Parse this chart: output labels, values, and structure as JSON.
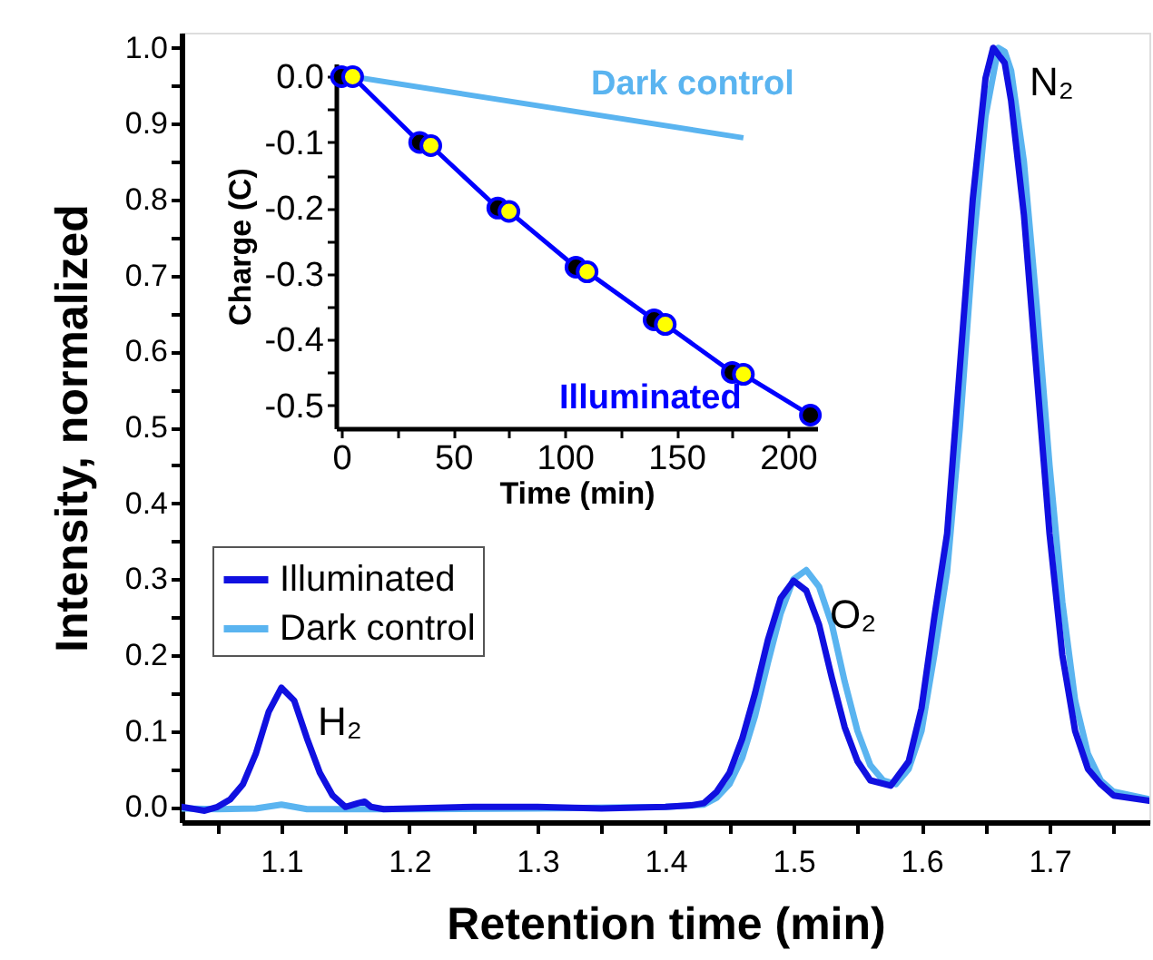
{
  "chart_data": [
    {
      "type": "line",
      "xlabel": "Retention time (min)",
      "ylabel": "Intensity, normalized",
      "xlim": [
        1.022,
        1.778
      ],
      "ylim": [
        -0.02,
        1.02
      ],
      "xticks": [
        {
          "value": 1.05,
          "label": null
        },
        1.1,
        {
          "value": 1.15,
          "label": null
        },
        1.2,
        {
          "value": 1.25,
          "label": null
        },
        1.3,
        {
          "value": 1.35,
          "label": null
        },
        1.4,
        {
          "value": 1.45,
          "label": null
        },
        1.5,
        {
          "value": 1.55,
          "label": null
        },
        1.6,
        {
          "value": 1.65,
          "label": null
        },
        1.7,
        {
          "value": 1.75,
          "label": null
        }
      ],
      "yticks": [
        {
          "value": 0,
          "label": "0.0"
        },
        {
          "value": 0.05,
          "label": null
        },
        0.1,
        {
          "value": 0.15,
          "label": null
        },
        0.2,
        {
          "value": 0.25,
          "label": null
        },
        0.3,
        {
          "value": 0.35,
          "label": null
        },
        0.4,
        {
          "value": 0.45,
          "label": null
        },
        0.5,
        {
          "value": 0.55,
          "label": null
        },
        0.6,
        {
          "value": 0.65,
          "label": null
        },
        0.7,
        {
          "value": 0.75,
          "label": null
        },
        0.8,
        {
          "value": 0.85,
          "label": null
        },
        0.9,
        {
          "value": 0.95,
          "label": null
        },
        {
          "value": 1,
          "label": "1.0"
        }
      ],
      "grid": false,
      "legend": "left",
      "line_style": "solid",
      "marker": "none",
      "annotations": [
        {
          "text": "H₂",
          "x": 1.1,
          "y": 0.157
        },
        {
          "text": "O₂",
          "x": 1.5,
          "y": 0.298
        },
        {
          "text": "N₂",
          "x": 1.656,
          "y": 1.0
        }
      ],
      "series": [
        {
          "name": "Illuminated",
          "color": "#1010e0",
          "x": [
            1.022,
            1.04,
            1.05,
            1.06,
            1.07,
            1.08,
            1.09,
            1.1,
            1.11,
            1.12,
            1.13,
            1.14,
            1.15,
            1.16,
            1.165,
            1.17,
            1.18,
            1.25,
            1.3,
            1.35,
            1.4,
            1.42,
            1.43,
            1.44,
            1.45,
            1.46,
            1.47,
            1.48,
            1.49,
            1.5,
            1.51,
            1.52,
            1.53,
            1.54,
            1.55,
            1.56,
            1.576,
            1.59,
            1.6,
            1.61,
            1.62,
            1.63,
            1.64,
            1.65,
            1.656,
            1.665,
            1.67,
            1.68,
            1.69,
            1.7,
            1.71,
            1.72,
            1.73,
            1.74,
            1.75,
            1.778
          ],
          "values": [
            0.0,
            -0.005,
            0.0,
            0.01,
            0.03,
            0.07,
            0.125,
            0.157,
            0.14,
            0.09,
            0.045,
            0.015,
            0.0,
            0.005,
            0.007,
            0.0,
            -0.003,
            0.0,
            0.0,
            -0.002,
            0.0,
            0.002,
            0.005,
            0.02,
            0.045,
            0.09,
            0.15,
            0.22,
            0.275,
            0.298,
            0.285,
            0.24,
            0.17,
            0.105,
            0.06,
            0.035,
            0.028,
            0.06,
            0.13,
            0.25,
            0.36,
            0.58,
            0.8,
            0.96,
            1.0,
            0.98,
            0.93,
            0.78,
            0.57,
            0.36,
            0.2,
            0.1,
            0.05,
            0.03,
            0.015,
            0.008
          ]
        },
        {
          "name": "Dark control",
          "color": "#5ab4f0",
          "x": [
            1.022,
            1.05,
            1.08,
            1.1,
            1.12,
            1.2,
            1.3,
            1.4,
            1.43,
            1.44,
            1.45,
            1.46,
            1.47,
            1.48,
            1.49,
            1.5,
            1.51,
            1.52,
            1.53,
            1.54,
            1.55,
            1.56,
            1.57,
            1.58,
            1.59,
            1.6,
            1.61,
            1.62,
            1.63,
            1.64,
            1.65,
            1.66,
            1.665,
            1.67,
            1.68,
            1.69,
            1.7,
            1.71,
            1.72,
            1.73,
            1.74,
            1.75,
            1.778
          ],
          "values": [
            -0.002,
            -0.003,
            -0.002,
            0.003,
            -0.003,
            -0.003,
            -0.002,
            0.0,
            0.003,
            0.012,
            0.03,
            0.065,
            0.12,
            0.19,
            0.255,
            0.3,
            0.312,
            0.29,
            0.24,
            0.165,
            0.1,
            0.055,
            0.035,
            0.03,
            0.05,
            0.1,
            0.2,
            0.31,
            0.5,
            0.73,
            0.91,
            1.0,
            0.995,
            0.97,
            0.85,
            0.66,
            0.45,
            0.27,
            0.14,
            0.07,
            0.035,
            0.02,
            0.01
          ]
        }
      ]
    },
    {
      "type": "scatter",
      "xlabel": "Time (min)",
      "ylabel": "Charge (C)",
      "xlim": [
        -2.5,
        213
      ],
      "ylim": [
        -0.535,
        0.02
      ],
      "xticks": [
        0,
        {
          "value": 25,
          "label": null
        },
        50,
        {
          "value": 75,
          "label": null
        },
        100,
        {
          "value": 125,
          "label": null
        },
        150,
        {
          "value": 175,
          "label": null
        },
        200
      ],
      "yticks": [
        {
          "value": 0,
          "label": "0.0"
        },
        {
          "value": -0.05,
          "label": null
        },
        -0.1,
        {
          "value": -0.15,
          "label": null
        },
        -0.2,
        {
          "value": -0.25,
          "label": null
        },
        -0.3,
        {
          "value": -0.35,
          "label": null
        },
        -0.4,
        {
          "value": -0.45,
          "label": null
        },
        -0.5
      ],
      "grid": false,
      "legend": false,
      "series": [
        {
          "type": "line",
          "color": "#5ab4f0",
          "name": "Dark control",
          "x": [
            5,
            180
          ],
          "values": [
            0,
            -0.093
          ]
        },
        {
          "type": "line",
          "color": "#0000ff",
          "name": "Illuminated",
          "x": [
            0,
            5,
            35,
            40,
            70,
            75,
            105,
            110,
            140,
            145,
            175,
            180,
            210
          ],
          "values": [
            0,
            0,
            -0.1,
            -0.105,
            -0.2,
            -0.205,
            -0.29,
            -0.297,
            -0.37,
            -0.377,
            -0.45,
            -0.453,
            -0.515
          ]
        },
        {
          "type": "scatter",
          "marker": "circle",
          "color": "#000000",
          "x": [
            0,
            35,
            70,
            105,
            140,
            175,
            210
          ],
          "values": [
            0,
            -0.1,
            -0.2,
            -0.29,
            -0.37,
            -0.45,
            -0.515
          ]
        },
        {
          "type": "scatter",
          "marker": "circle",
          "color": "#ffff00",
          "x": [
            5,
            40,
            75,
            110,
            145,
            180
          ],
          "values": [
            0,
            -0.105,
            -0.205,
            -0.297,
            -0.377,
            -0.453
          ]
        }
      ]
    }
  ]
}
